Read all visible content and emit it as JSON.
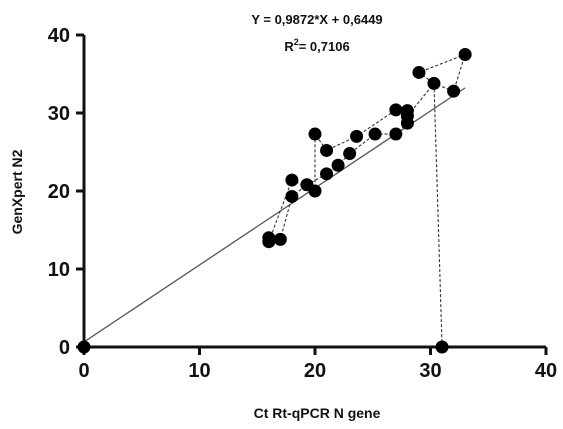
{
  "chart_data": {
    "type": "scatter",
    "title": "",
    "xlabel": "Ct Rt-qPCR N gene",
    "ylabel": "GenXpert N2",
    "xlim": [
      0,
      40
    ],
    "ylim": [
      0,
      40
    ],
    "x_ticks": [
      "0",
      "10",
      "20",
      "30",
      "40"
    ],
    "y_ticks": [
      "0",
      "10",
      "20",
      "30",
      "40"
    ],
    "grid": false,
    "regression": {
      "equation": "Y = 0,9872*X + 0,6449",
      "r2_prefix": "R",
      "r2_sup": "2",
      "r2_value": "= 0,7106",
      "slope": 0.9872,
      "intercept": 0.6449,
      "x_range": [
        0,
        33
      ]
    },
    "points": [
      {
        "x": 0,
        "y": 0
      },
      {
        "x": 16,
        "y": 13.5
      },
      {
        "x": 16,
        "y": 14
      },
      {
        "x": 17,
        "y": 13.8
      },
      {
        "x": 18,
        "y": 19.3
      },
      {
        "x": 18,
        "y": 21.4
      },
      {
        "x": 19.3,
        "y": 20.8
      },
      {
        "x": 20,
        "y": 20
      },
      {
        "x": 20,
        "y": 27.3
      },
      {
        "x": 21,
        "y": 25.2
      },
      {
        "x": 21,
        "y": 22.2
      },
      {
        "x": 22,
        "y": 23.3
      },
      {
        "x": 23,
        "y": 24.8
      },
      {
        "x": 23.6,
        "y": 27
      },
      {
        "x": 25.2,
        "y": 27.3
      },
      {
        "x": 27,
        "y": 27.3
      },
      {
        "x": 27,
        "y": 30.4
      },
      {
        "x": 28,
        "y": 28.7
      },
      {
        "x": 28,
        "y": 29.6
      },
      {
        "x": 28,
        "y": 30.3
      },
      {
        "x": 29,
        "y": 35.2
      },
      {
        "x": 30.3,
        "y": 33.8
      },
      {
        "x": 31,
        "y": 0
      },
      {
        "x": 32,
        "y": 32.8
      },
      {
        "x": 33,
        "y": 37.5
      }
    ],
    "dashed_path": [
      {
        "x": 16,
        "y": 14
      },
      {
        "x": 17,
        "y": 13.8
      },
      {
        "x": 18,
        "y": 19.3
      },
      {
        "x": 19.3,
        "y": 20.8
      },
      {
        "x": 21,
        "y": 22.2
      },
      {
        "x": 22,
        "y": 23.3
      },
      {
        "x": 23,
        "y": 24.8
      },
      {
        "x": 25.2,
        "y": 27.3
      },
      {
        "x": 27,
        "y": 27.3
      },
      {
        "x": 28,
        "y": 28.7
      },
      {
        "x": 28,
        "y": 29.6
      },
      {
        "x": 30.3,
        "y": 33.8
      },
      {
        "x": 32,
        "y": 32.8
      },
      {
        "x": 33,
        "y": 37.5
      },
      {
        "x": 29,
        "y": 35.2
      },
      {
        "x": 30.3,
        "y": 33.8
      },
      {
        "x": 31,
        "y": 0
      }
    ],
    "dashed_path_2": [
      {
        "x": 16,
        "y": 13.5
      },
      {
        "x": 18,
        "y": 21.4
      },
      {
        "x": 20,
        "y": 20
      },
      {
        "x": 20,
        "y": 27.3
      },
      {
        "x": 21,
        "y": 25.2
      },
      {
        "x": 23.6,
        "y": 27
      },
      {
        "x": 27,
        "y": 30.4
      },
      {
        "x": 28,
        "y": 30.3
      }
    ],
    "colors": {
      "points": "#000000",
      "axis": "#111111",
      "regression_line": "#555555",
      "dashed": "#333333"
    }
  }
}
